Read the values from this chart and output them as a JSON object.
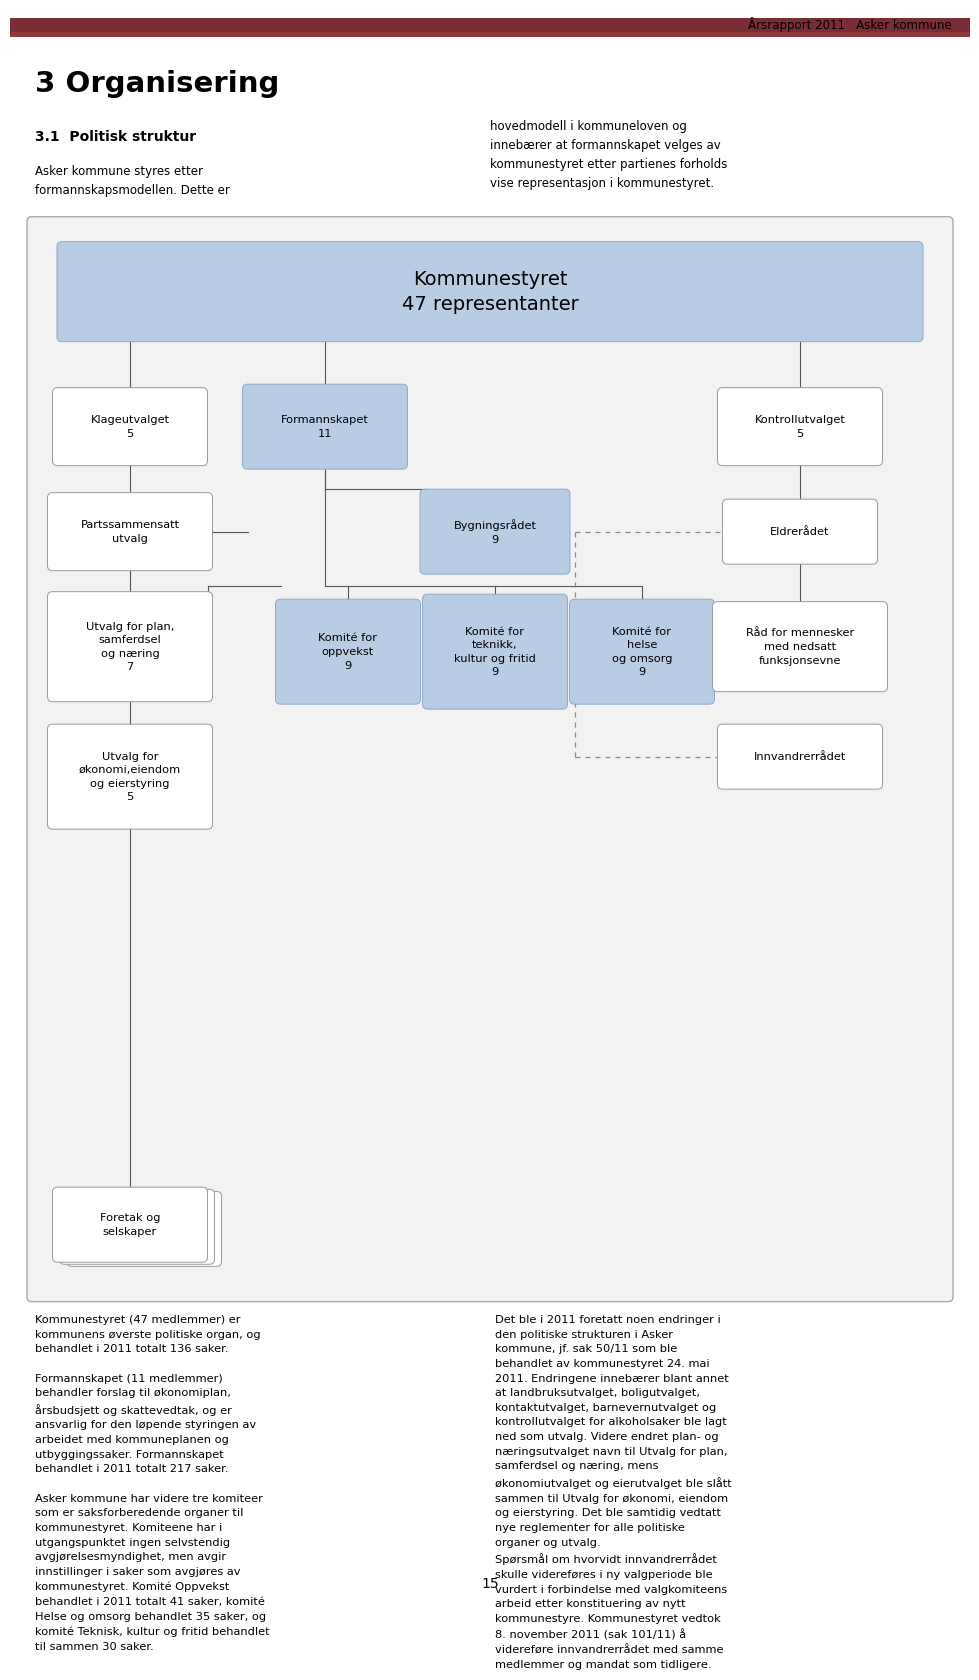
{
  "page_title": "Årsrapport 2011   Asker kommune",
  "header_bar_dark": "#7B2D35",
  "header_bar_light": "#A0522D",
  "chapter_title": "3 Organisering",
  "section_title": "3.1  Politisk struktur",
  "left_intro": "Asker kommune styres etter\nformannskapsmodellen. Dette er",
  "right_intro": "hovedmodell i kommuneloven og\ninnebærer at formannskapet velges av\nkommunestyret etter partienes forholds\nvise representasjon i kommunestyret.",
  "box_blue_fill": "#B8CCE4",
  "box_blue_border": "#8FA9C8",
  "box_white_fill": "#FFFFFF",
  "box_white_border": "#999999",
  "diag_fill": "#F2F2F2",
  "diag_border": "#AAAAAA",
  "bottom_left": "Kommunestyret (47 medlemmer) er\nkommunens øverste politiske organ, og\nbehandlet i 2011 totalt 136 saker.\n\nFormannskapet (11 medlemmer)\nbehandler forslag til økonomiplan,\nårsbudsjett og skattevedtak, og er\nansvarlig for den løpende styringen av\narbeidet med kommuneplanen og\nutbyggingssaker. Formannskapet\nbehandlet i 2011 totalt 217 saker.\n\nAsker kommune har videre tre komiteer\nsom er saksforberedende organer til\nkommunestyret. Komiteene har i\nutgangspunktet ingen selvstendig\navgjørelsesmyndighet, men avgir\ninnstillinger i saker som avgjøres av\nkommunestyret. Komité Oppvekst\nbehandlet i 2011 totalt 41 saker, komité\nHelse og omsorg behandlet 35 saker, og\nkomité Teknisk, kultur og fritid behandlet\ntil sammen 30 saker.",
  "bottom_right": "Det ble i 2011 foretatt noen endringer i\nden politiske strukturen i Asker\nkommune, jf. sak 50/11 som ble\nbehandlet av kommunestyret 24. mai\n2011. Endringene innebærer blant annet\nat landbruksutvalget, boligutvalget,\nkontaktutvalget, barnevernutvalget og\nkontrollutvalget for alkoholsaker ble lagt\nned som utvalg. Videre endret plan- og\nnæringsutvalget navn til Utvalg for plan,\nsamferdsel og næring, mens\nøkonomiutvalget og eierutvalget ble slått\nsammen til Utvalg for økonomi, eiendom\nog eierstyring. Det ble samtidig vedtatt\nnye reglementer for alle politiske\norganer og utvalg.\nSpørsmål om hvorvidt innvandrerrådet\nskulle videreføres i ny valgperiode ble\nvurdert i forbindelse med valgkomiteens\narbeid etter konstituering av nytt\nkommunestyre. Kommunestyret vedtok\n8. november 2011 (sak 101/11) å\nvidereføre innvandrerrådet med samme\nmedlemmer og mandat som tidligere.",
  "page_number": "15"
}
